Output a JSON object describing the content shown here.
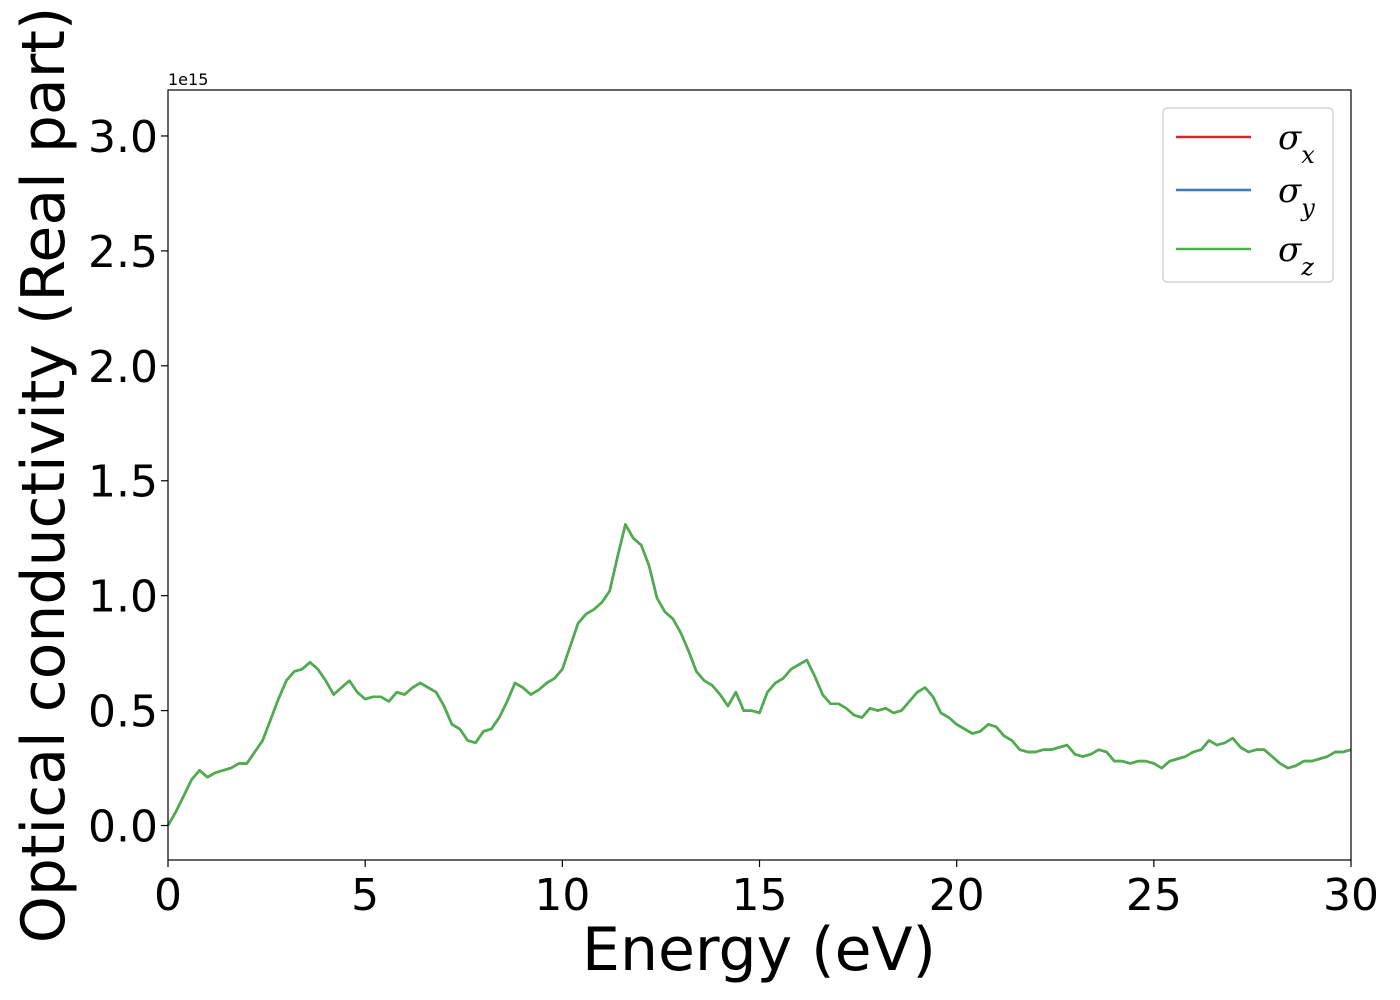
{
  "chart_data": {
    "type": "line",
    "title": "",
    "xlabel": "Energy (eV)",
    "ylabel": "Optical conductivity (Real part)",
    "y_offset_label": "1e15",
    "xlim": [
      0,
      30
    ],
    "ylim": [
      -0.15,
      3.2
    ],
    "xticks": [
      0,
      5,
      10,
      15,
      20,
      25,
      30
    ],
    "xtick_labels": [
      "0",
      "5",
      "10",
      "15",
      "20",
      "25",
      "30"
    ],
    "yticks": [
      0.0,
      0.5,
      1.0,
      1.5,
      2.0,
      2.5,
      3.0
    ],
    "ytick_labels": [
      "0.0",
      "0.5",
      "1.0",
      "1.5",
      "2.0",
      "2.5",
      "3.0"
    ],
    "grid": false,
    "legend_position": "top-right",
    "x": [
      0.0,
      0.2,
      0.4,
      0.6,
      0.8,
      1.0,
      1.2,
      1.4,
      1.6,
      1.8,
      2.0,
      2.2,
      2.4,
      2.6,
      2.8,
      3.0,
      3.2,
      3.4,
      3.6,
      3.8,
      4.0,
      4.2,
      4.4,
      4.6,
      4.8,
      5.0,
      5.2,
      5.4,
      5.6,
      5.8,
      6.0,
      6.2,
      6.4,
      6.6,
      6.8,
      7.0,
      7.2,
      7.4,
      7.6,
      7.8,
      8.0,
      8.2,
      8.4,
      8.6,
      8.8,
      9.0,
      9.2,
      9.4,
      9.6,
      9.8,
      10.0,
      10.2,
      10.4,
      10.6,
      10.8,
      11.0,
      11.2,
      11.4,
      11.6,
      11.8,
      12.0,
      12.2,
      12.4,
      12.6,
      12.8,
      13.0,
      13.2,
      13.4,
      13.6,
      13.8,
      14.0,
      14.2,
      14.4,
      14.6,
      14.8,
      15.0,
      15.2,
      15.4,
      15.6,
      15.8,
      16.0,
      16.2,
      16.4,
      16.6,
      16.8,
      17.0,
      17.2,
      17.4,
      17.6,
      17.8,
      18.0,
      18.2,
      18.4,
      18.6,
      18.8,
      19.0,
      19.2,
      19.4,
      19.6,
      19.8,
      20.0,
      20.2,
      20.4,
      20.6,
      20.8,
      21.0,
      21.2,
      21.4,
      21.6,
      21.8,
      22.0,
      22.2,
      22.4,
      22.6,
      22.8,
      23.0,
      23.2,
      23.4,
      23.6,
      23.8,
      24.0,
      24.2,
      24.4,
      24.6,
      24.8,
      25.0,
      25.2,
      25.4,
      25.6,
      25.8,
      26.0,
      26.2,
      26.4,
      26.6,
      26.8,
      27.0,
      27.2,
      27.4,
      27.6,
      27.8,
      28.0,
      28.2,
      28.4,
      28.6,
      28.8,
      29.0,
      29.2,
      29.4,
      29.6,
      29.8,
      30.0
    ],
    "series": [
      {
        "name": "σx",
        "color": "#d62728",
        "values": [
          0.0,
          0.06,
          0.13,
          0.2,
          0.24,
          0.21,
          0.23,
          0.24,
          0.25,
          0.27,
          0.27,
          0.32,
          0.37,
          0.46,
          0.55,
          0.63,
          0.67,
          0.68,
          0.71,
          0.68,
          0.63,
          0.57,
          0.6,
          0.63,
          0.58,
          0.55,
          0.56,
          0.56,
          0.54,
          0.58,
          0.57,
          0.6,
          0.62,
          0.6,
          0.58,
          0.52,
          0.44,
          0.42,
          0.37,
          0.36,
          0.41,
          0.42,
          0.47,
          0.54,
          0.62,
          0.6,
          0.57,
          0.59,
          0.62,
          0.64,
          0.68,
          0.78,
          0.88,
          0.92,
          0.94,
          0.97,
          1.02,
          1.17,
          1.31,
          1.25,
          1.22,
          1.13,
          0.99,
          0.93,
          0.9,
          0.84,
          0.76,
          0.67,
          0.63,
          0.61,
          0.57,
          0.52,
          0.58,
          0.5,
          0.5,
          0.49,
          0.58,
          0.62,
          0.64,
          0.68,
          0.7,
          0.72,
          0.65,
          0.57,
          0.53,
          0.53,
          0.51,
          0.48,
          0.47,
          0.51,
          0.5,
          0.51,
          0.49,
          0.5,
          0.54,
          0.58,
          0.6,
          0.56,
          0.49,
          0.47,
          0.44,
          0.42,
          0.4,
          0.41,
          0.44,
          0.43,
          0.39,
          0.37,
          0.33,
          0.32,
          0.32,
          0.33,
          0.33,
          0.34,
          0.35,
          0.31,
          0.3,
          0.31,
          0.33,
          0.32,
          0.28,
          0.28,
          0.27,
          0.28,
          0.28,
          0.27,
          0.25,
          0.28,
          0.29,
          0.3,
          0.32,
          0.33,
          0.37,
          0.35,
          0.36,
          0.38,
          0.34,
          0.32,
          0.33,
          0.33,
          0.3,
          0.27,
          0.25,
          0.26,
          0.28,
          0.28,
          0.29,
          0.3,
          0.32,
          0.32,
          0.33
        ]
      },
      {
        "name": "σy",
        "color": "#377eb8",
        "values": [
          0.0,
          0.06,
          0.13,
          0.2,
          0.24,
          0.21,
          0.23,
          0.24,
          0.25,
          0.27,
          0.27,
          0.32,
          0.37,
          0.46,
          0.55,
          0.63,
          0.67,
          0.68,
          0.71,
          0.68,
          0.63,
          0.57,
          0.6,
          0.63,
          0.58,
          0.55,
          0.56,
          0.56,
          0.54,
          0.58,
          0.57,
          0.6,
          0.62,
          0.6,
          0.58,
          0.52,
          0.44,
          0.42,
          0.37,
          0.36,
          0.41,
          0.42,
          0.47,
          0.54,
          0.62,
          0.6,
          0.57,
          0.59,
          0.62,
          0.64,
          0.68,
          0.78,
          0.88,
          0.92,
          0.94,
          0.97,
          1.02,
          1.17,
          1.31,
          1.25,
          1.22,
          1.13,
          0.99,
          0.93,
          0.9,
          0.84,
          0.76,
          0.67,
          0.63,
          0.61,
          0.57,
          0.52,
          0.58,
          0.5,
          0.5,
          0.49,
          0.58,
          0.62,
          0.64,
          0.68,
          0.7,
          0.72,
          0.65,
          0.57,
          0.53,
          0.53,
          0.51,
          0.48,
          0.47,
          0.51,
          0.5,
          0.51,
          0.49,
          0.5,
          0.54,
          0.58,
          0.6,
          0.56,
          0.49,
          0.47,
          0.44,
          0.42,
          0.4,
          0.41,
          0.44,
          0.43,
          0.39,
          0.37,
          0.33,
          0.32,
          0.32,
          0.33,
          0.33,
          0.34,
          0.35,
          0.31,
          0.3,
          0.31,
          0.33,
          0.32,
          0.28,
          0.28,
          0.27,
          0.28,
          0.28,
          0.27,
          0.25,
          0.28,
          0.29,
          0.3,
          0.32,
          0.33,
          0.37,
          0.35,
          0.36,
          0.38,
          0.34,
          0.32,
          0.33,
          0.33,
          0.3,
          0.27,
          0.25,
          0.26,
          0.28,
          0.28,
          0.29,
          0.3,
          0.32,
          0.32,
          0.33
        ]
      },
      {
        "name": "σz",
        "color": "#4daf4a",
        "values": [
          0.0,
          0.06,
          0.13,
          0.2,
          0.24,
          0.21,
          0.23,
          0.24,
          0.25,
          0.27,
          0.27,
          0.32,
          0.37,
          0.46,
          0.55,
          0.63,
          0.67,
          0.68,
          0.71,
          0.68,
          0.63,
          0.57,
          0.6,
          0.63,
          0.58,
          0.55,
          0.56,
          0.56,
          0.54,
          0.58,
          0.57,
          0.6,
          0.62,
          0.6,
          0.58,
          0.52,
          0.44,
          0.42,
          0.37,
          0.36,
          0.41,
          0.42,
          0.47,
          0.54,
          0.62,
          0.6,
          0.57,
          0.59,
          0.62,
          0.64,
          0.68,
          0.78,
          0.88,
          0.92,
          0.94,
          0.97,
          1.02,
          1.17,
          1.31,
          1.25,
          1.22,
          1.13,
          0.99,
          0.93,
          0.9,
          0.84,
          0.76,
          0.67,
          0.63,
          0.61,
          0.57,
          0.52,
          0.58,
          0.5,
          0.5,
          0.49,
          0.58,
          0.62,
          0.64,
          0.68,
          0.7,
          0.72,
          0.65,
          0.57,
          0.53,
          0.53,
          0.51,
          0.48,
          0.47,
          0.51,
          0.5,
          0.51,
          0.49,
          0.5,
          0.54,
          0.58,
          0.6,
          0.56,
          0.49,
          0.47,
          0.44,
          0.42,
          0.4,
          0.41,
          0.44,
          0.43,
          0.39,
          0.37,
          0.33,
          0.32,
          0.32,
          0.33,
          0.33,
          0.34,
          0.35,
          0.31,
          0.3,
          0.31,
          0.33,
          0.32,
          0.28,
          0.28,
          0.27,
          0.28,
          0.28,
          0.27,
          0.25,
          0.28,
          0.29,
          0.3,
          0.32,
          0.33,
          0.37,
          0.35,
          0.36,
          0.38,
          0.34,
          0.32,
          0.33,
          0.33,
          0.3,
          0.27,
          0.25,
          0.26,
          0.28,
          0.28,
          0.29,
          0.3,
          0.32,
          0.32,
          0.33
        ]
      }
    ]
  }
}
